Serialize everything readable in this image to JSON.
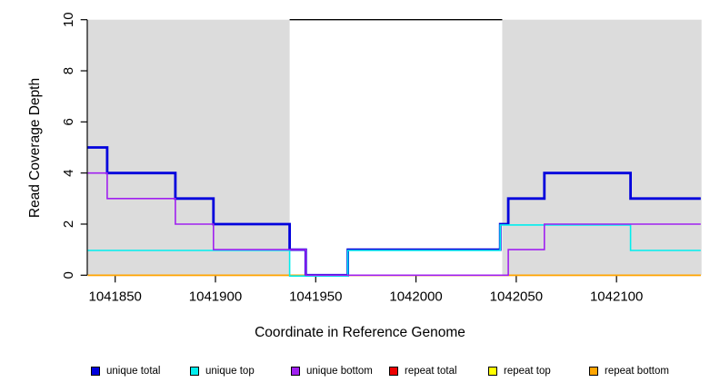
{
  "figure": {
    "x_axis_title": "Coordinate in Reference Genome",
    "y_axis_title": "Read Coverage Depth"
  },
  "legend": {
    "items": [
      {
        "name": "unique-total",
        "label": "unique total",
        "color": "#0000DD"
      },
      {
        "name": "unique-top",
        "label": "unique top",
        "color": "#00EEEE"
      },
      {
        "name": "unique-bottom",
        "label": "unique bottom",
        "color": "#A020F0"
      },
      {
        "name": "repeat-total",
        "label": "repeat total",
        "color": "#EE0000"
      },
      {
        "name": "repeat-top",
        "label": "repeat top",
        "color": "#FFFF00"
      },
      {
        "name": "repeat-bottom",
        "label": "repeat bottom",
        "color": "#FFA500"
      }
    ]
  },
  "chart_data": {
    "type": "line",
    "subtype": "step-after",
    "title": "",
    "xlabel": "Coordinate in Reference Genome",
    "ylabel": "Read Coverage Depth",
    "xlim": [
      1041836.4,
      1042142.4
    ],
    "ylim": [
      0,
      10
    ],
    "xticks": [
      1041850,
      1041900,
      1041950,
      1042000,
      1042050,
      1042100
    ],
    "yticks": [
      0,
      2,
      4,
      6,
      8,
      10
    ],
    "grid": false,
    "legend_position": "bottom",
    "background_color": "#FFFFFF",
    "shaded_regions": [
      {
        "x0": 1041836.4,
        "x1": 1041937,
        "color": "#DCDCDC",
        "note": "left gray panel"
      },
      {
        "x0": 1042043,
        "x1": 1042142.4,
        "color": "#DCDCDC",
        "note": "right gray panel"
      }
    ],
    "clipped_top_line": {
      "y": 10,
      "x0": 1041937,
      "x1": 1042043,
      "color": "#000000"
    },
    "series": [
      {
        "name": "unique total",
        "color": "#0000DD",
        "line_width": 2.8,
        "step_points": [
          [
            1041836,
            5
          ],
          [
            1041846,
            4
          ],
          [
            1041880,
            3
          ],
          [
            1041899,
            2
          ],
          [
            1041937,
            1
          ],
          [
            1041945,
            0
          ],
          [
            1041966,
            1
          ],
          [
            1042042,
            2
          ],
          [
            1042046,
            3
          ],
          [
            1042064,
            4
          ],
          [
            1042107,
            3
          ],
          [
            1042142,
            3
          ]
        ]
      },
      {
        "name": "unique top",
        "color": "#00EEEE",
        "line_width": 1.6,
        "step_points": [
          [
            1041836,
            1
          ],
          [
            1041937,
            0
          ],
          [
            1041966,
            1
          ],
          [
            1042042,
            2
          ],
          [
            1042107,
            1
          ],
          [
            1042142,
            1
          ]
        ]
      },
      {
        "name": "unique bottom",
        "color": "#A020F0",
        "line_width": 1.6,
        "step_points": [
          [
            1041836,
            4
          ],
          [
            1041846,
            3
          ],
          [
            1041880,
            2
          ],
          [
            1041899,
            1
          ],
          [
            1041945,
            0
          ],
          [
            1042046,
            1
          ],
          [
            1042064,
            2
          ],
          [
            1042142,
            2
          ]
        ]
      },
      {
        "name": "repeat total",
        "color": "#EE0000",
        "line_width": 1.6,
        "step_points": [
          [
            1041836,
            0
          ],
          [
            1042142,
            0
          ]
        ]
      },
      {
        "name": "repeat top",
        "color": "#FFFF00",
        "line_width": 1.6,
        "step_points": [
          [
            1041836,
            0
          ],
          [
            1042142,
            0
          ]
        ]
      },
      {
        "name": "repeat bottom",
        "color": "#FFA500",
        "line_width": 1.6,
        "step_points": [
          [
            1041836,
            0
          ],
          [
            1042142,
            0
          ]
        ]
      }
    ],
    "draw_order": [
      3,
      4,
      5,
      0,
      1,
      2
    ]
  }
}
